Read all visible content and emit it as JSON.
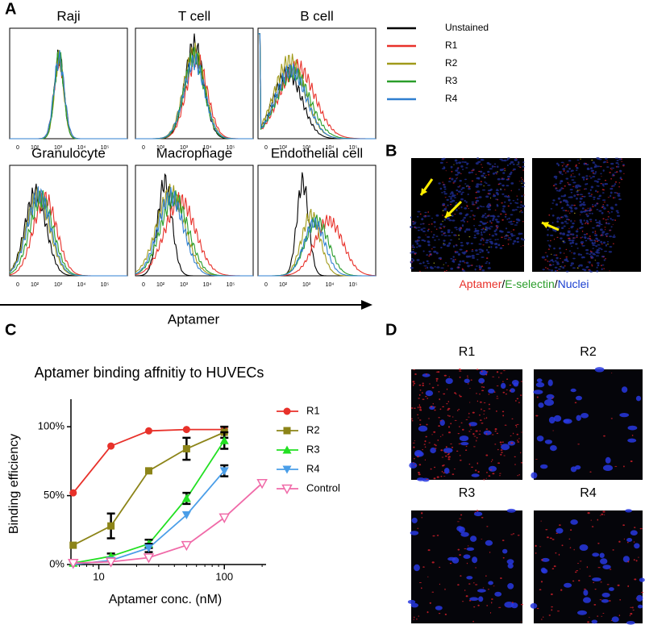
{
  "panel_a": {
    "label": "A",
    "titles": [
      "Raji",
      "T cell",
      "B cell",
      "Granulocyte",
      "Macrophage",
      "Endothelial cell"
    ],
    "tick_labels": [
      "0",
      "10²",
      "10³",
      "10⁴",
      "10⁵"
    ],
    "axis_label": "Aptamer",
    "legend": [
      {
        "name": "Unstained",
        "color": "#000000"
      },
      {
        "name": "R1",
        "color": "#e8312a"
      },
      {
        "name": "R2",
        "color": "#a09a1a"
      },
      {
        "name": "R3",
        "color": "#2a9d2a"
      },
      {
        "name": "R4",
        "color": "#2f7fd0"
      }
    ]
  },
  "panel_b": {
    "label": "B",
    "caption": [
      {
        "text": "Aptamer",
        "color": "#e8312a"
      },
      {
        "text": "/",
        "color": "#000000"
      },
      {
        "text": "E-selectin",
        "color": "#2a9d2a"
      },
      {
        "text": "/",
        "color": "#000000"
      },
      {
        "text": "Nuclei",
        "color": "#1a3fd0"
      }
    ]
  },
  "chart_data": {
    "type": "line",
    "panel_label": "C",
    "title": "Aptamer binding affnitiy to HUVECs",
    "x_label": "Aptamer conc. (nM)",
    "y_label": "Binding efficiency",
    "x_scale": "log",
    "xlim": [
      6,
      215
    ],
    "xticks": [
      10,
      100
    ],
    "ylim": [
      0,
      120
    ],
    "yticks": [
      {
        "value": 0,
        "label": "0%"
      },
      {
        "value": 50,
        "label": "50%"
      },
      {
        "value": 100,
        "label": "100%"
      }
    ],
    "series": [
      {
        "name": "R1",
        "color": "#e8312a",
        "marker": "circle",
        "x": [
          6.25,
          12.5,
          25,
          50,
          100
        ],
        "values": [
          52,
          86,
          97,
          98,
          98
        ],
        "errors": [
          null,
          null,
          null,
          null,
          null
        ]
      },
      {
        "name": "R2",
        "color": "#8c8418",
        "marker": "square",
        "x": [
          6.25,
          12.5,
          25,
          50,
          100
        ],
        "values": [
          14,
          28,
          68,
          84,
          96
        ],
        "errors": [
          null,
          9,
          null,
          8,
          4
        ]
      },
      {
        "name": "R3",
        "color": "#22e022",
        "marker": "triangle",
        "x": [
          6.25,
          12.5,
          25,
          50,
          100
        ],
        "values": [
          1,
          6,
          15,
          48,
          90
        ],
        "errors": [
          null,
          2,
          3,
          4,
          6
        ]
      },
      {
        "name": "R4",
        "color": "#4a9ee8",
        "marker": "triangle-down",
        "x": [
          6.25,
          12.5,
          25,
          50,
          100
        ],
        "values": [
          0,
          3,
          12,
          36,
          68
        ],
        "errors": [
          null,
          null,
          3,
          null,
          4
        ]
      },
      {
        "name": "Control",
        "color": "#f06aa8",
        "marker": "triangle-down-open",
        "x": [
          6.25,
          12.5,
          25,
          50,
          100,
          200
        ],
        "values": [
          1,
          2,
          5,
          14,
          34,
          59
        ],
        "errors": [
          null,
          null,
          null,
          null,
          null,
          null
        ]
      }
    ]
  },
  "panel_d": {
    "label": "D",
    "titles": [
      "R1",
      "R2",
      "R3",
      "R4"
    ]
  }
}
